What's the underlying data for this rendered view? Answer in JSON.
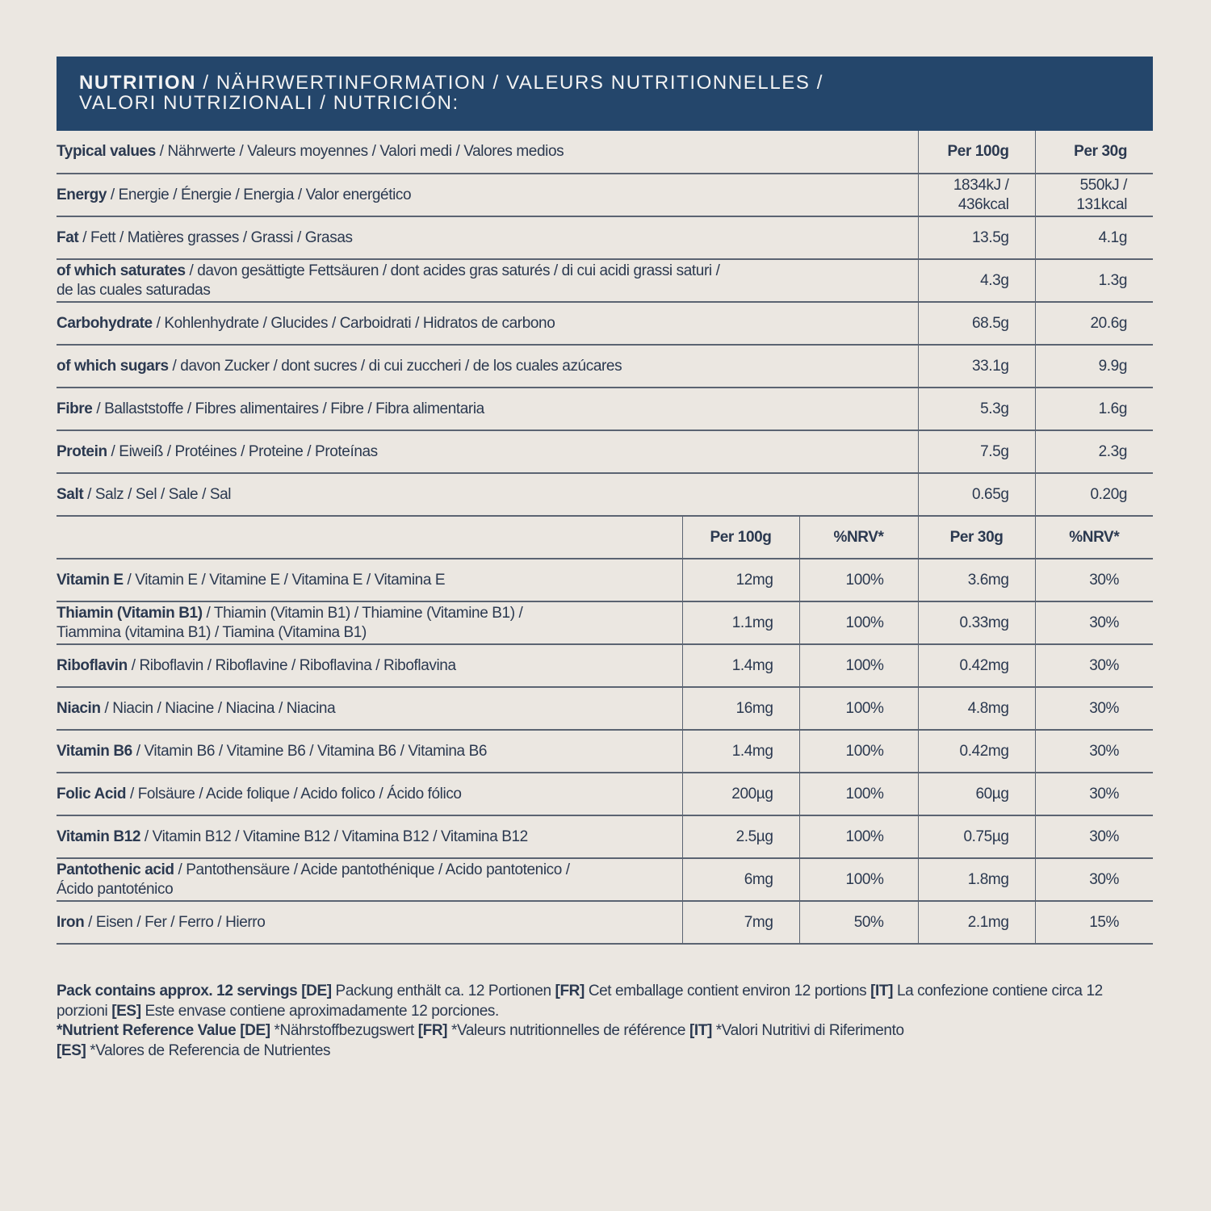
{
  "colors": {
    "header_bg": "#24466b",
    "background": "#ebe7e1",
    "text": "#2b3950"
  },
  "header": {
    "title_bold": "NUTRITION",
    "title_rest_line1": " / NÄHRWERTINFORMATION / VALEURS NUTRITIONNELLES /",
    "title_line2": "VALORI NUTRIZIONALI / NUTRICIÓN:"
  },
  "macros": {
    "header": {
      "bold": "Typical values",
      "rest": " / Nährwerte /  Valeurs moyennes / Valori medi / Valores medios",
      "per100": "Per 100g",
      "per30": "Per 30g"
    },
    "rows": [
      {
        "bold": "Energy",
        "rest": " / Energie / Énergie / Energia / Valor energético",
        "per100": "1834kJ /\n436kcal",
        "per30": "550kJ /\n131kcal"
      },
      {
        "bold": "Fat",
        "rest": " / Fett / Matières grasses / Grassi / Grasas",
        "per100": "13.5g",
        "per30": "4.1g"
      },
      {
        "bold": "of which saturates",
        "rest": " / davon gesättigte Fettsäuren / dont acides gras saturés / di cui acidi grassi saturi /\nde las cuales saturadas",
        "per100": "4.3g",
        "per30": "1.3g"
      },
      {
        "bold": "Carbohydrate",
        "rest": " / Kohlenhydrate / Glucides / Carboidrati / Hidratos de carbono",
        "per100": "68.5g",
        "per30": "20.6g"
      },
      {
        "bold": "of which sugars",
        "rest": " / davon Zucker / dont sucres / di cui zuccheri / de los cuales azúcares",
        "per100": "33.1g",
        "per30": "9.9g"
      },
      {
        "bold": "Fibre",
        "rest": " / Ballaststoffe / Fibres alimentaires / Fibre / Fibra alimentaria",
        "per100": "5.3g",
        "per30": "1.6g"
      },
      {
        "bold": "Protein",
        "rest": " / Eiweiß / Protéines / Proteine / Proteínas",
        "per100": "7.5g",
        "per30": "2.3g"
      },
      {
        "bold": "Salt",
        "rest": " / Salz / Sel / Sale / Sal",
        "per100": "0.65g",
        "per30": "0.20g"
      }
    ]
  },
  "vitamins": {
    "header": {
      "per100": "Per 100g",
      "nrv100": "%NRV*",
      "per30": "Per 30g",
      "nrv30": "%NRV*"
    },
    "rows": [
      {
        "bold": "Vitamin E",
        "rest": " / Vitamin E / Vitamine E / Vitamina E / Vitamina E",
        "per100": "12mg",
        "nrv100": "100%",
        "per30": "3.6mg",
        "nrv30": "30%"
      },
      {
        "bold": "Thiamin (Vitamin B1)",
        "rest": " / Thiamin (Vitamin B1) / Thiamine (Vitamine B1) /\nTiammina (vitamina B1) / Tiamina (Vitamina B1)",
        "per100": "1.1mg",
        "nrv100": "100%",
        "per30": "0.33mg",
        "nrv30": "30%"
      },
      {
        "bold": "Riboflavin",
        "rest": " / Riboflavin / Riboflavine / Riboflavina / Riboflavina",
        "per100": "1.4mg",
        "nrv100": "100%",
        "per30": "0.42mg",
        "nrv30": "30%"
      },
      {
        "bold": "Niacin",
        "rest": " / Niacin / Niacine / Niacina / Niacina",
        "per100": "16mg",
        "nrv100": "100%",
        "per30": "4.8mg",
        "nrv30": "30%"
      },
      {
        "bold": " Vitamin B6",
        "rest": " / Vitamin B6 / Vitamine B6 / Vitamina B6 / Vitamina B6",
        "per100": "1.4mg",
        "nrv100": "100%",
        "per30": "0.42mg",
        "nrv30": "30%"
      },
      {
        "bold": "Folic Acid",
        "rest": " / Folsäure / Acide folique / Acido folico / Ácido fólico",
        "per100": "200µg",
        "nrv100": "100%",
        "per30": "60µg",
        "nrv30": "30%"
      },
      {
        "bold": "Vitamin B12",
        "rest": " / Vitamin B12 / Vitamine B12 / Vitamina B12 / Vitamina B12",
        "per100": "2.5µg",
        "nrv100": "100%",
        "per30": "0.75µg",
        "nrv30": "30%"
      },
      {
        "bold": "Pantothenic acid",
        "rest": " / Pantothensäure / Acide pantothénique / Acido pantotenico /\nÁcido pantoténico",
        "per100": "6mg",
        "nrv100": "100%",
        "per30": "1.8mg",
        "nrv30": "30%"
      },
      {
        "bold": "Iron",
        "rest": " / Eisen / Fer / Ferro / Hierro",
        "per100": "7mg",
        "nrv100": "50%",
        "per30": "2.1mg",
        "nrv30": "15%"
      }
    ]
  },
  "footer": {
    "servings_bold": "Pack contains approx. 12 servings",
    "de_tag": "[DE]",
    "de_text": " Packung enthält ca. 12 Portionen ",
    "fr_tag": "[FR]",
    "fr_text": " Cet emballage contient environ 12 portions ",
    "it_tag": "[IT]",
    "it_text": " La confezione contiene circa 12 porzioni ",
    "es_tag": "[ES]",
    "es_text": " Este envase contiene aproximadamente 12 porciones.",
    "nrv_bold": "*Nutrient Reference Value",
    "nrv_de_tag": "[DE]",
    "nrv_de_text": " *Nährstoffbezugswert ",
    "nrv_fr_tag": "[FR]",
    "nrv_fr_text": " *Valeurs nutritionnelles de référence ",
    "nrv_it_tag": "[IT]",
    "nrv_it_text": " *Valori Nutritivi di Riferimento",
    "nrv_es_tag": "[ES]",
    "nrv_es_text": " *Valores de Referencia de Nutrientes"
  }
}
